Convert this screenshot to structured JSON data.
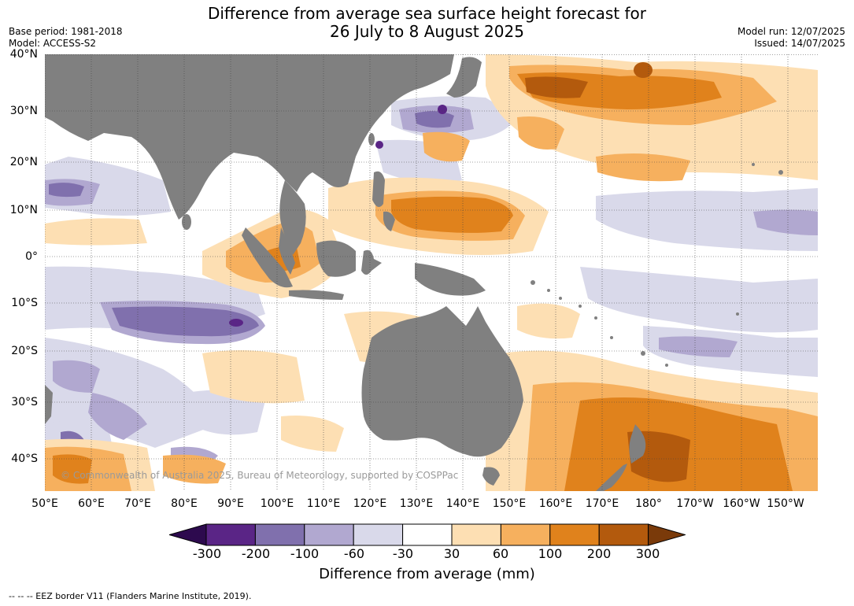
{
  "header": {
    "title_line1": "Difference from average sea surface height forecast for",
    "title_line2": "26 July to 8 August 2025",
    "base_period": "Base period: 1981-2018",
    "model": "Model: ACCESS-S2",
    "model_run": "Model run: 12/07/2025",
    "issued": "Issued: 14/07/2025"
  },
  "map": {
    "lat_labels": [
      "40°N",
      "30°N",
      "20°N",
      "10°N",
      "0°",
      "10°S",
      "20°S",
      "30°S",
      "40°S"
    ],
    "lon_labels": [
      "50°E",
      "60°E",
      "70°E",
      "80°E",
      "90°E",
      "100°E",
      "110°E",
      "120°E",
      "130°E",
      "140°E",
      "150°E",
      "160°E",
      "170°E",
      "180°",
      "170°W",
      "160°W",
      "150°W"
    ],
    "land_color": "#808080",
    "copyright": "© Commonwealth of Australia 2025, Bureau of Meteorology, supported by COSPPac"
  },
  "colorbar": {
    "title": "Difference from average (mm)",
    "ticks": [
      "-300",
      "-200",
      "-100",
      "-60",
      "-30",
      "30",
      "60",
      "100",
      "200",
      "300"
    ],
    "colors": [
      "#2d0a4e",
      "#5a2586",
      "#8070ad",
      "#b1a8d0",
      "#d9d9ea",
      "#ffffff",
      "#fddfb3",
      "#f6b05e",
      "#e0821c",
      "#b35a0d",
      "#7a3a0a"
    ]
  },
  "footer": {
    "eez_note": "--  --  -- EEZ border V11 (Flanders Marine Institute, 2019)."
  }
}
